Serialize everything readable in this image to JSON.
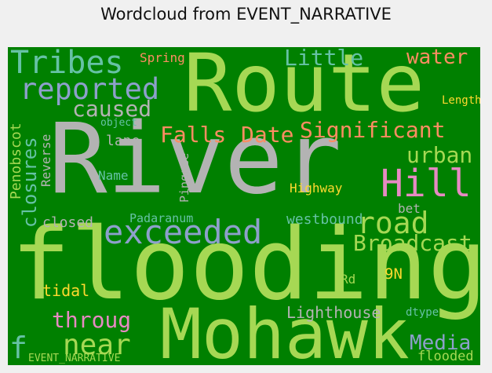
{
  "title": "Wordcloud from EVENT_NARRATIVE",
  "colors": {
    "background": "#008000",
    "page": "#f0f0f0"
  },
  "chart_data": {
    "type": "wordcloud",
    "title": "Wordcloud from EVENT_NARRATIVE",
    "words": [
      {
        "text": "River",
        "color": "#b3b3b3"
      },
      {
        "text": "Route",
        "color": "#a6d854"
      },
      {
        "text": "flooding",
        "color": "#a6d854"
      },
      {
        "text": "Mohawk",
        "color": "#a6d854"
      },
      {
        "text": "exceeded",
        "color": "#8da0cb"
      },
      {
        "text": "Tribes",
        "color": "#66c2a5"
      },
      {
        "text": "reported",
        "color": "#8da0cb"
      },
      {
        "text": "Hill",
        "color": "#e78ac3"
      },
      {
        "text": "road",
        "color": "#a6d854"
      },
      {
        "text": "near",
        "color": "#a6d854"
      },
      {
        "text": "Little",
        "color": "#66c2a5"
      },
      {
        "text": "water",
        "color": "#fc8d62"
      },
      {
        "text": "Significant",
        "color": "#fc8d62"
      },
      {
        "text": "Falls",
        "color": "#fc8d62"
      },
      {
        "text": "Date",
        "color": "#fc8d62"
      },
      {
        "text": "caused",
        "color": "#b3b3b3"
      },
      {
        "text": "urban",
        "color": "#a6d854"
      },
      {
        "text": "Broadcast",
        "color": "#a6d854"
      },
      {
        "text": "throug",
        "color": "#e78ac3"
      },
      {
        "text": "Media",
        "color": "#8da0cb"
      },
      {
        "text": "closures",
        "color": "#66c2a5"
      },
      {
        "text": "Lighthouse",
        "color": "#b3b3b3"
      },
      {
        "text": "westbound",
        "color": "#66c2a5"
      },
      {
        "text": "Spring",
        "color": "#fc8d62"
      },
      {
        "text": "Length",
        "color": "#ffd92f"
      },
      {
        "text": "object",
        "color": "#66c2a5"
      },
      {
        "text": "lane",
        "color": "#b3b3b3"
      },
      {
        "text": "Penobscot",
        "color": "#a6d854"
      },
      {
        "text": "Reverse",
        "color": "#b3b3b3"
      },
      {
        "text": "Pingree",
        "color": "#b3b3b3"
      },
      {
        "text": "Name",
        "color": "#66c2a5"
      },
      {
        "text": "Highway",
        "color": "#ffd92f"
      },
      {
        "text": "bet",
        "color": "#b3b3b3"
      },
      {
        "text": "Padaranum",
        "color": "#66c2a5"
      },
      {
        "text": "closed",
        "color": "#b3b3b3"
      },
      {
        "text": "9N",
        "color": "#ffd92f"
      },
      {
        "text": "tidal",
        "color": "#ffd92f"
      },
      {
        "text": "Rd",
        "color": "#a6d854"
      },
      {
        "text": "dtype",
        "color": "#66c2a5"
      },
      {
        "text": "flooded",
        "color": "#a6d854"
      },
      {
        "text": "EVENT_NARRATIVE",
        "color": "#a6d854"
      },
      {
        "text": "f",
        "color": "#66c2a5"
      }
    ]
  }
}
